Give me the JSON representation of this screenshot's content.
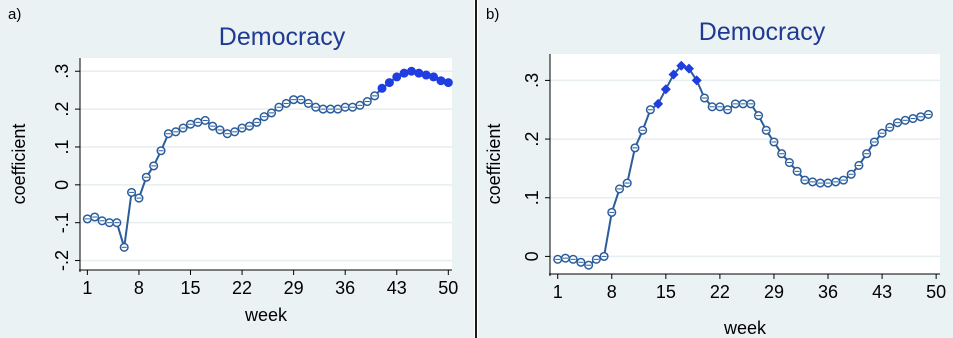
{
  "chart_data": [
    {
      "panel_label": "a)",
      "type": "line",
      "title": "Democracy",
      "xlabel": "week",
      "ylabel": "coefficient",
      "xlim": [
        0,
        50.5
      ],
      "ylim": [
        -0.225,
        0.335
      ],
      "xticks": [
        1,
        8,
        15,
        22,
        29,
        36,
        43,
        50
      ],
      "yticks": [
        -0.2,
        -0.1,
        0,
        0.1,
        0.2,
        0.3
      ],
      "ytick_labels": [
        "-.2",
        "-.1",
        "0",
        ".1",
        ".2",
        ".3"
      ],
      "grid": true,
      "line_color": "#2b5d9c",
      "highlight_color": "#1f3de0",
      "series": [
        {
          "x": [
            1,
            2,
            3,
            4,
            5,
            6,
            7,
            8,
            9,
            10,
            11,
            12,
            13,
            14,
            15,
            16,
            17,
            18,
            19,
            20,
            21,
            22,
            23,
            24,
            25,
            26,
            27,
            28,
            29,
            30,
            31,
            32,
            33,
            34,
            35,
            36,
            37,
            38,
            39,
            40,
            41,
            42,
            43,
            44,
            45,
            46,
            47,
            48,
            49,
            50
          ],
          "y": [
            -0.09,
            -0.085,
            -0.095,
            -0.1,
            -0.1,
            -0.165,
            -0.02,
            -0.035,
            0.02,
            0.05,
            0.09,
            0.135,
            0.14,
            0.15,
            0.16,
            0.165,
            0.17,
            0.155,
            0.145,
            0.135,
            0.14,
            0.15,
            0.155,
            0.165,
            0.18,
            0.19,
            0.205,
            0.215,
            0.225,
            0.225,
            0.215,
            0.205,
            0.2,
            0.2,
            0.2,
            0.205,
            0.205,
            0.21,
            0.22,
            0.235,
            0.255,
            0.27,
            0.285,
            0.295,
            0.3,
            0.295,
            0.29,
            0.285,
            0.275,
            0.27
          ],
          "highlight_from_week": 41
        }
      ]
    },
    {
      "panel_label": "b)",
      "type": "line",
      "title": "Democracy",
      "xlabel": "week",
      "ylabel": "coefficient",
      "xlim": [
        0,
        50.5
      ],
      "ylim": [
        -0.03,
        0.345
      ],
      "xticks": [
        1,
        8,
        15,
        22,
        29,
        36,
        43,
        50
      ],
      "yticks": [
        0,
        0.1,
        0.2,
        0.3
      ],
      "ytick_labels": [
        "0",
        ".1",
        ".2",
        ".3"
      ],
      "grid": true,
      "line_color": "#2b5d9c",
      "highlight_color": "#1f3de0",
      "series": [
        {
          "x": [
            1,
            2,
            3,
            4,
            5,
            6,
            7,
            8,
            9,
            10,
            11,
            12,
            13,
            14,
            15,
            16,
            17,
            18,
            19,
            20,
            21,
            22,
            23,
            24,
            25,
            26,
            27,
            28,
            29,
            30,
            31,
            32,
            33,
            34,
            35,
            36,
            37,
            38,
            39,
            40,
            41,
            42,
            43,
            44,
            45,
            46,
            47,
            48,
            49
          ],
          "y": [
            -0.005,
            -0.003,
            -0.005,
            -0.01,
            -0.015,
            -0.005,
            0,
            0.075,
            0.115,
            0.125,
            0.185,
            0.215,
            0.25,
            0.26,
            0.285,
            0.31,
            0.325,
            0.32,
            0.3,
            0.27,
            0.255,
            0.255,
            0.25,
            0.26,
            0.26,
            0.26,
            0.24,
            0.215,
            0.195,
            0.175,
            0.16,
            0.145,
            0.13,
            0.127,
            0.125,
            0.125,
            0.127,
            0.13,
            0.14,
            0.155,
            0.175,
            0.195,
            0.21,
            0.22,
            0.228,
            0.232,
            0.235,
            0.238,
            0.242
          ],
          "highlight_weeks": [
            14,
            15,
            16,
            17,
            18,
            19
          ]
        }
      ]
    }
  ]
}
